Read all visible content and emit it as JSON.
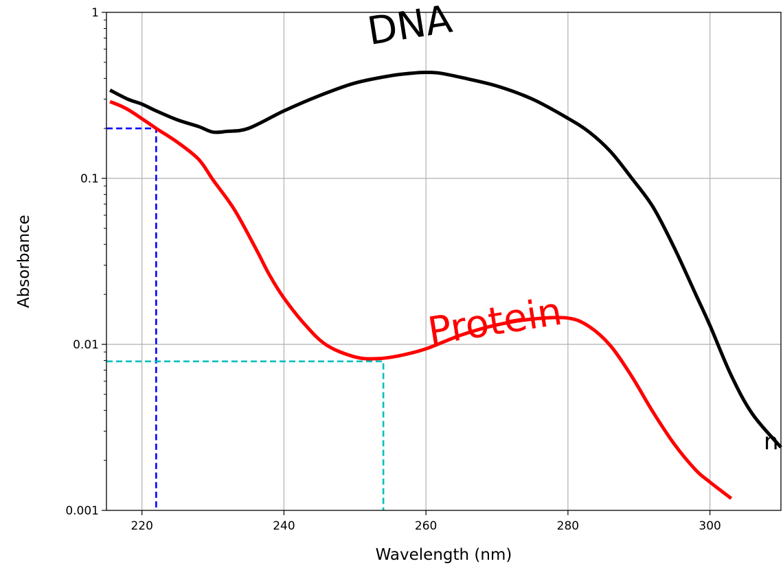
{
  "chart_data": {
    "type": "line",
    "xlabel": "Wavelength (nm)",
    "ylabel": "Absorbance",
    "xlim": [
      215,
      310
    ],
    "ylim": [
      0.001,
      1
    ],
    "yscale": "log",
    "grid": true,
    "x_ticks": [
      220,
      240,
      260,
      280,
      300
    ],
    "y_ticks": [
      {
        "value": 0.001,
        "label": "0.001"
      },
      {
        "value": 0.01,
        "label": "0.01"
      },
      {
        "value": 0.1,
        "label": "0.1"
      },
      {
        "value": 1,
        "label": "1"
      }
    ],
    "series": [
      {
        "name": "DNA",
        "color": "#000000",
        "x": [
          215.5,
          218,
          220,
          222,
          225,
          228,
          230,
          232,
          235,
          240,
          245,
          250,
          255,
          258,
          260,
          262,
          265,
          270,
          275,
          280,
          283,
          286,
          289,
          292,
          295,
          298,
          300,
          303,
          306,
          310
        ],
        "y": [
          0.34,
          0.3,
          0.28,
          0.255,
          0.225,
          0.205,
          0.19,
          0.192,
          0.2,
          0.255,
          0.315,
          0.375,
          0.415,
          0.43,
          0.435,
          0.43,
          0.405,
          0.36,
          0.3,
          0.23,
          0.19,
          0.145,
          0.1,
          0.067,
          0.038,
          0.02,
          0.013,
          0.0065,
          0.0038,
          0.0024
        ]
      },
      {
        "name": "Protein",
        "color": "#ff0000",
        "x": [
          215.5,
          218,
          222,
          225,
          228,
          230,
          233,
          236,
          238,
          240,
          243,
          246,
          250,
          253,
          256,
          260,
          265,
          270,
          275,
          280,
          283,
          286,
          289,
          292,
          295,
          298,
          300,
          303
        ],
        "y": [
          0.29,
          0.26,
          0.2,
          0.165,
          0.13,
          0.098,
          0.065,
          0.038,
          0.026,
          0.019,
          0.0131,
          0.0099,
          0.0084,
          0.0082,
          0.0085,
          0.0094,
          0.0114,
          0.0131,
          0.0142,
          0.0144,
          0.0128,
          0.0098,
          0.0064,
          0.0039,
          0.0025,
          0.00175,
          0.00148,
          0.00118
        ]
      }
    ],
    "reference_lines": [
      {
        "color": "#0000ff",
        "x": 222,
        "y": 0.2
      },
      {
        "color": "#00bfbf",
        "x": 254,
        "y": 0.0079
      }
    ],
    "annotations": [
      {
        "text": "DNA",
        "color": "#000000",
        "x": 258,
        "y": 0.7,
        "rotation": -9
      },
      {
        "text": "Protein",
        "color": "#ff0000",
        "x": 270,
        "y": 0.0115,
        "rotation": -9
      }
    ],
    "stray_text": "n"
  }
}
